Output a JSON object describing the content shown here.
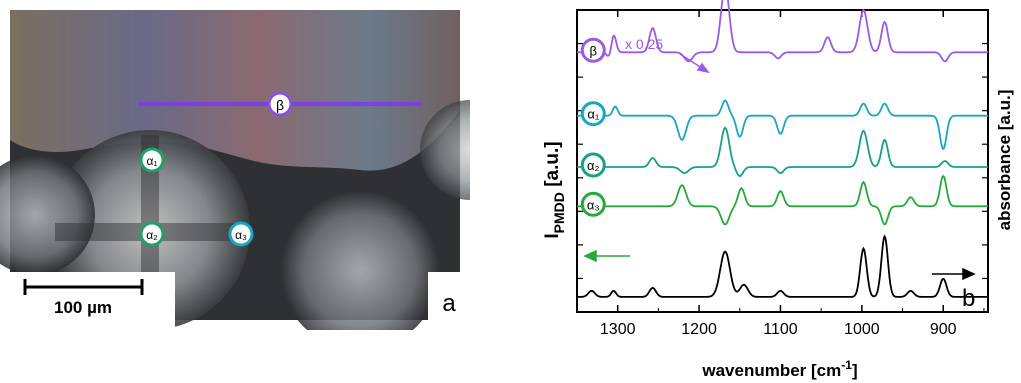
{
  "panel_a": {
    "panel_label": "a",
    "scale_bar_label": "100 µm",
    "markers": [
      {
        "label": "β",
        "color": "#8b4fe0"
      },
      {
        "label": "α₁",
        "color": "#22a06b"
      },
      {
        "label": "α₂",
        "color": "#22a06b"
      },
      {
        "label": "α₃",
        "color": "#1aa6c2"
      }
    ],
    "line_color": "#7b3fe4"
  },
  "panel_b": {
    "panel_label": "b",
    "left_axis_label_main": "I",
    "left_axis_label_sub": "PMDD",
    "left_axis_label_unit": " [a.u.]",
    "right_axis_label": "absorbance [a.u.]",
    "x_axis_label_main": "wavenumber [cm",
    "x_axis_label_sup": "-1",
    "x_axis_label_end": "]",
    "scale_note": "x 0.25"
  },
  "chart_data": {
    "type": "line",
    "xlabel": "wavenumber [cm-1]",
    "ylabel_left": "I_PMDD [a.u.]",
    "ylabel_right": "absorbance [a.u.]",
    "x_reversed": true,
    "xlim": [
      1350,
      845
    ],
    "xticks": [
      1300,
      1200,
      1100,
      1000,
      900
    ],
    "grid": false,
    "series": [
      {
        "name": "β",
        "color": "#9b59e8",
        "baseline": 0.86,
        "note": "x 0.25",
        "peaks": [
          [
            1305,
            0.06,
            3
          ],
          [
            1257,
            0.08,
            4
          ],
          [
            1168,
            0.22,
            5
          ],
          [
            1042,
            0.05,
            4
          ],
          [
            998,
            0.14,
            5
          ],
          [
            972,
            0.1,
            4
          ]
        ],
        "dips": [
          [
            1310,
            0.02,
            3
          ],
          [
            1213,
            0.03,
            5
          ],
          [
            1103,
            0.02,
            4
          ],
          [
            898,
            0.03,
            4
          ]
        ]
      },
      {
        "name": "α₁",
        "color": "#1aa6c2",
        "baseline": 0.65,
        "peaks": [
          [
            1303,
            0.03,
            3
          ],
          [
            1168,
            0.05,
            4
          ],
          [
            998,
            0.04,
            4
          ],
          [
            972,
            0.04,
            4
          ]
        ],
        "dips": [
          [
            1221,
            0.08,
            5
          ],
          [
            1150,
            0.07,
            4
          ],
          [
            1100,
            0.06,
            4
          ],
          [
            900,
            0.11,
            4
          ]
        ]
      },
      {
        "name": "α₂",
        "color": "#16a085",
        "baseline": 0.48,
        "peaks": [
          [
            1257,
            0.03,
            4
          ],
          [
            1168,
            0.13,
            5
          ],
          [
            998,
            0.12,
            5
          ],
          [
            972,
            0.09,
            4
          ],
          [
            898,
            0.02,
            4
          ]
        ],
        "dips": [
          [
            1218,
            0.02,
            5
          ],
          [
            1150,
            0.03,
            4
          ],
          [
            1100,
            0.02,
            4
          ]
        ]
      },
      {
        "name": "α₃",
        "color": "#27a83a",
        "baseline": 0.35,
        "peaks": [
          [
            1221,
            0.07,
            5
          ],
          [
            1148,
            0.06,
            4
          ],
          [
            1100,
            0.05,
            4
          ],
          [
            998,
            0.08,
            4
          ],
          [
            940,
            0.03,
            4
          ],
          [
            900,
            0.1,
            4
          ]
        ],
        "dips": [
          [
            1168,
            0.06,
            5
          ],
          [
            972,
            0.06,
            4
          ]
        ]
      },
      {
        "name": "absorbance",
        "color": "#000000",
        "baseline": 0.05,
        "peaks": [
          [
            1332,
            0.02,
            4
          ],
          [
            1305,
            0.02,
            3
          ],
          [
            1257,
            0.03,
            4
          ],
          [
            1168,
            0.15,
            6
          ],
          [
            1145,
            0.04,
            5
          ],
          [
            1100,
            0.02,
            4
          ],
          [
            998,
            0.16,
            4
          ],
          [
            972,
            0.2,
            4
          ],
          [
            940,
            0.02,
            4
          ],
          [
            900,
            0.06,
            4
          ]
        ],
        "dips": []
      }
    ]
  }
}
